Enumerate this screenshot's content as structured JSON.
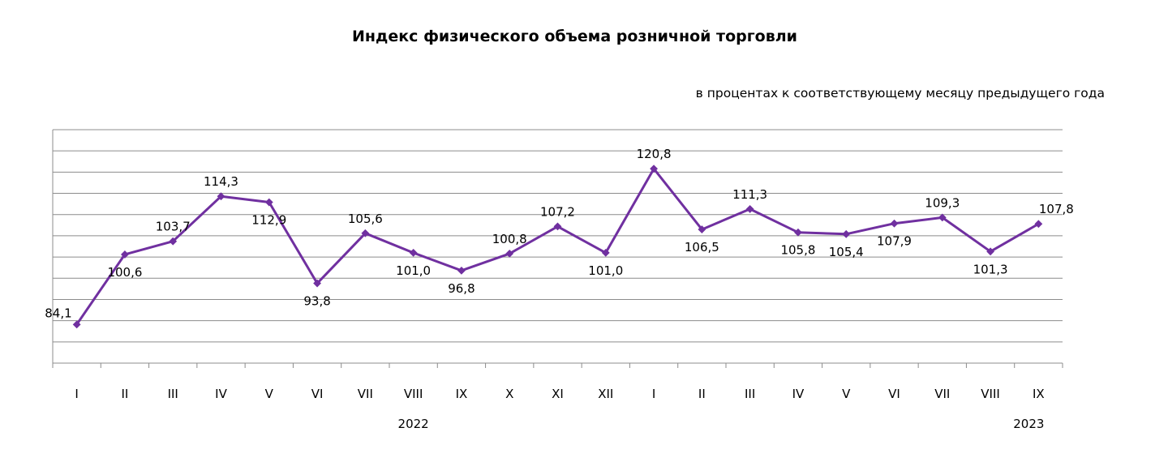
{
  "chart_data": {
    "type": "line",
    "title": "Индекс физического объема розничной торговли",
    "subtitle": "в процентах к соответствующему месяцу предыдущего года",
    "xlabel": "",
    "ylabel": "",
    "ylim": [
      75,
      130
    ],
    "grid": true,
    "legend": "none",
    "color": "#7030A0",
    "categories": [
      "I",
      "II",
      "III",
      "IV",
      "V",
      "VI",
      "VII",
      "VIII",
      "IX",
      "X",
      "XI",
      "XII",
      "I",
      "II",
      "III",
      "IV",
      "V",
      "VI",
      "VII",
      "VIII",
      "IX"
    ],
    "values": [
      84.1,
      100.6,
      103.7,
      114.3,
      112.9,
      93.8,
      105.6,
      101.0,
      96.8,
      100.8,
      107.2,
      101.0,
      120.8,
      106.5,
      111.3,
      105.8,
      105.4,
      107.9,
      109.3,
      101.3,
      107.8
    ],
    "labels": [
      "84,1",
      "100,6",
      "103,7",
      "114,3",
      "112,9",
      "93,8",
      "105,6",
      "101,0",
      "96,8",
      "100,8",
      "107,2",
      "101,0",
      "120,8",
      "106,5",
      "111,3",
      "105,8",
      "105,4",
      "107,9",
      "109,3",
      "101,3",
      "107,8"
    ],
    "year_labels": [
      {
        "text": "2022",
        "under_index": 7
      },
      {
        "text": "2023",
        "under_index": 20
      }
    ]
  }
}
